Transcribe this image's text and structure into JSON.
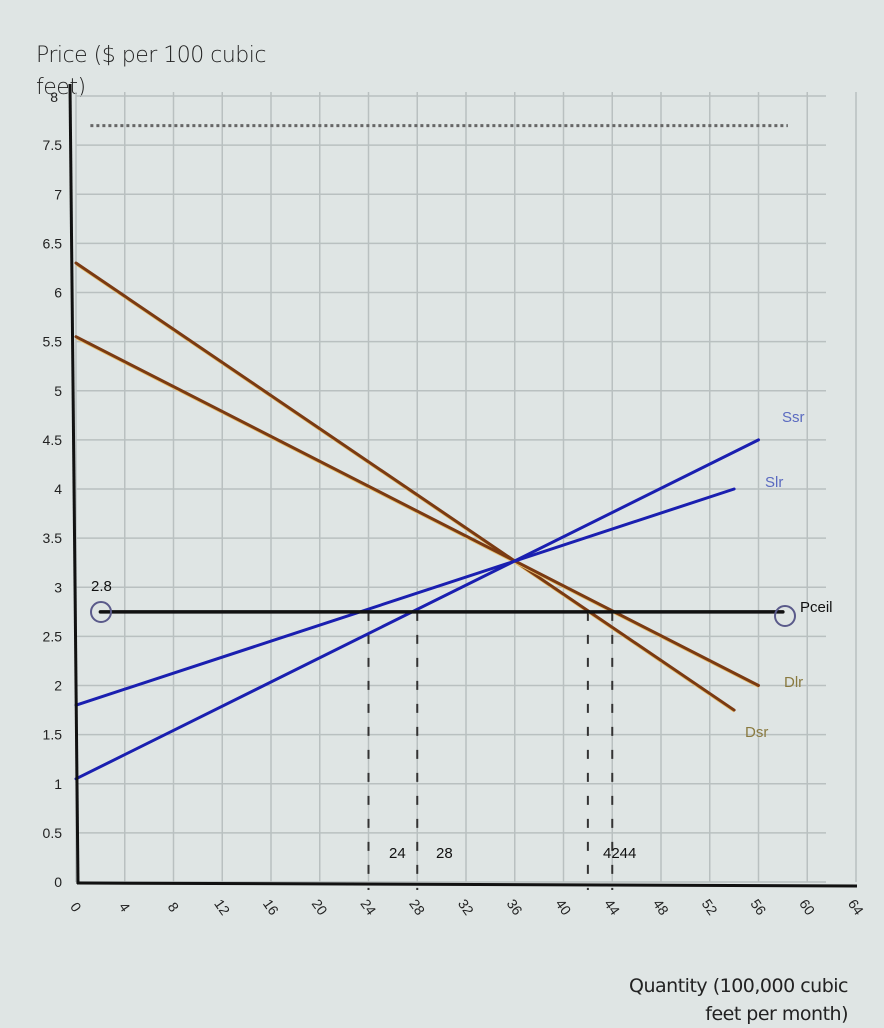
{
  "chart_data": {
    "type": "line",
    "title": "",
    "ylabel": "Price ($ per 100 cubic feet)",
    "xlabel": "Quantity (100,000 cubic feet per month)",
    "xlim": [
      0,
      64
    ],
    "ylim": [
      0,
      8
    ],
    "grid": true,
    "x_ticks": [
      "0",
      "4",
      "8",
      "12",
      "16",
      "20",
      "24",
      "28",
      "32",
      "36",
      "40",
      "44",
      "48",
      "52",
      "56",
      "60",
      "64"
    ],
    "y_ticks": [
      "0",
      "0.5",
      "1",
      "1.5",
      "2",
      "2.5",
      "3",
      "3.5",
      "4",
      "4.5",
      "5",
      "5.5",
      "6",
      "6.5",
      "7",
      "7.5",
      "8"
    ],
    "series": [
      {
        "name": "Dsr",
        "color": "#7a3a12",
        "label_color": "#8a7a40",
        "points": [
          [
            0,
            6.3
          ],
          [
            54,
            1.75
          ]
        ]
      },
      {
        "name": "Dlr",
        "color": "#7a3a12",
        "label_color": "#8a7a40",
        "points": [
          [
            0,
            5.55
          ],
          [
            56,
            2.0
          ]
        ]
      },
      {
        "name": "Ssr",
        "color": "#1a1fb0",
        "label_color": "#5a6ac0",
        "points": [
          [
            0,
            1.05
          ],
          [
            56,
            4.5
          ]
        ]
      },
      {
        "name": "Slr",
        "color": "#1a1fb0",
        "label_color": "#5a6ac0",
        "points": [
          [
            0,
            1.8
          ],
          [
            54,
            4.0
          ]
        ]
      },
      {
        "name": "Pceil",
        "color": "#111111",
        "label_color": "#111111",
        "points": [
          [
            2,
            2.75
          ],
          [
            58,
            2.75
          ]
        ]
      }
    ],
    "reference_lines": [
      {
        "type": "horizontal-dotted",
        "y": 7.75,
        "x_range": [
          2,
          58
        ]
      },
      {
        "type": "vertical-dashed",
        "x": 24,
        "label": "24"
      },
      {
        "type": "vertical-dashed",
        "x": 28,
        "label": "28"
      },
      {
        "type": "vertical-dashed",
        "x": 42,
        "label": "42"
      },
      {
        "type": "vertical-dashed",
        "x": 44,
        "label": "44"
      }
    ],
    "annotations": [
      {
        "text": "2.8",
        "x": 2,
        "y": 2.95
      },
      {
        "text": "24",
        "x": 25.5,
        "y": 0.3
      },
      {
        "text": "28",
        "x": 29.5,
        "y": 0.3
      },
      {
        "text": "4244",
        "x": 44.5,
        "y": 0.3
      }
    ],
    "intersection": {
      "x": 36,
      "y": 3.25
    }
  },
  "labels": {
    "y_axis_title": "Price ($ per 100 cubic feet)",
    "x_axis_title_line1": "Quantity (100,000 cubic",
    "x_axis_title_line2": "feet per month)",
    "ann_price": "2.8",
    "ann_24": "24",
    "ann_28": "28",
    "ann_4244": "4244",
    "ssr": "Ssr",
    "slr": "Slr",
    "pceil": "Pceil",
    "dlr": "Dlr",
    "dsr": "Dsr"
  }
}
